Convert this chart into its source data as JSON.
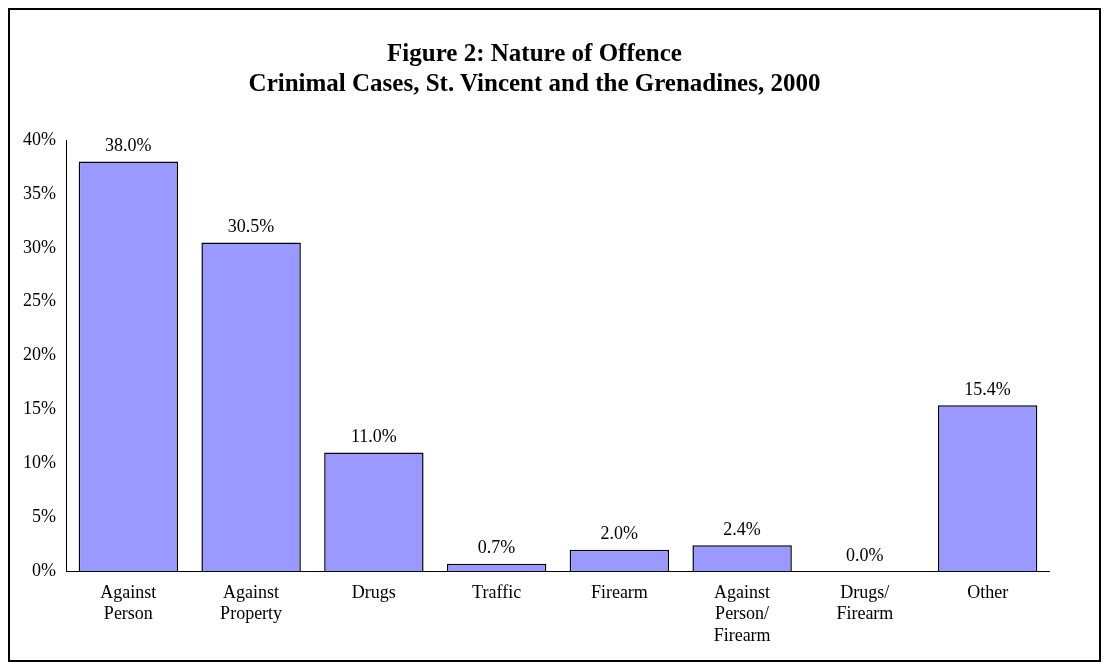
{
  "chart_data": {
    "type": "bar",
    "title": "Figure 2: Nature of Offence",
    "subtitle": "Crinimal Cases, St. Vincent and the Grenadines, 2000",
    "categories": [
      "Against Person",
      "Against Property",
      "Drugs",
      "Traffic",
      "Firearm",
      "Against Person/ Firearm",
      "Drugs/ Firearm",
      "Other"
    ],
    "values": [
      38.0,
      30.5,
      11.0,
      0.7,
      2.0,
      2.4,
      0.0,
      15.4
    ],
    "value_labels": [
      "38.0%",
      "30.5%",
      "11.0%",
      "0.7%",
      "2.0%",
      "2.4%",
      "0.0%",
      "15.4%"
    ],
    "color": "#9999ff",
    "ylim": [
      0,
      40
    ],
    "yticks": [
      {
        "value": 0,
        "label": "0%"
      },
      {
        "value": 5,
        "label": "5%"
      },
      {
        "value": 10,
        "label": "10%"
      },
      {
        "value": 15,
        "label": "15%"
      },
      {
        "value": 20,
        "label": "20%"
      },
      {
        "value": 25,
        "label": "25%"
      },
      {
        "value": 30,
        "label": "30%"
      },
      {
        "value": 35,
        "label": "35%"
      },
      {
        "value": 40,
        "label": "40%"
      }
    ],
    "grid": false,
    "legend": false
  }
}
